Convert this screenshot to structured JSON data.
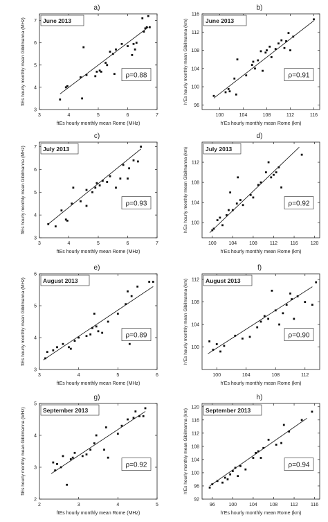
{
  "chart_data": [
    {
      "type": "scatter",
      "panel_letter": "a)",
      "title": "June 2013",
      "rho": "ρ=0.88",
      "xlabel": "ftEs hourly monthly mean Rome (MHz)",
      "ylabel": "ftEs hourly monthly mean Gibilmanna (MHz)",
      "xlim": [
        3,
        7
      ],
      "ylim": [
        3,
        7.3
      ],
      "xticks": [
        3,
        4,
        5,
        6,
        7
      ],
      "yticks": [
        3,
        4,
        5,
        6,
        7
      ],
      "points": [
        [
          3.7,
          3.45
        ],
        [
          3.9,
          4.0
        ],
        [
          3.95,
          4.05
        ],
        [
          4.4,
          4.45
        ],
        [
          4.45,
          3.5
        ],
        [
          4.5,
          5.8
        ],
        [
          4.6,
          4.55
        ],
        [
          4.9,
          4.5
        ],
        [
          4.95,
          4.7
        ],
        [
          5.05,
          4.75
        ],
        [
          5.1,
          4.7
        ],
        [
          5.25,
          5.1
        ],
        [
          5.3,
          5.0
        ],
        [
          5.4,
          5.6
        ],
        [
          5.5,
          5.5
        ],
        [
          5.55,
          4.6
        ],
        [
          5.6,
          5.7
        ],
        [
          5.8,
          5.95
        ],
        [
          5.9,
          4.75
        ],
        [
          6.0,
          5.85
        ],
        [
          6.15,
          5.45
        ],
        [
          6.2,
          5.95
        ],
        [
          6.25,
          5.7
        ],
        [
          6.3,
          6.0
        ],
        [
          6.5,
          7.1
        ],
        [
          6.55,
          6.5
        ],
        [
          6.6,
          6.65
        ],
        [
          6.65,
          6.7
        ],
        [
          6.7,
          7.2
        ],
        [
          6.75,
          6.7
        ]
      ],
      "fit": [
        [
          3.7,
          3.7
        ],
        [
          6.7,
          6.7
        ]
      ]
    },
    {
      "type": "scatter",
      "panel_letter": "b)",
      "title": "June 2013",
      "rho": "ρ=0.91",
      "xlabel": "h'Es hourly monthly mean Rome (km)",
      "ylabel": "h'Es hourly monthly mean Gibilmanna (km)",
      "xlim": [
        97,
        117
      ],
      "ylim": [
        95,
        116
      ],
      "xticks": [
        100,
        104,
        108,
        112,
        116
      ],
      "yticks": [
        96,
        100,
        104,
        108,
        112,
        116
      ],
      "points": [
        [
          99.0,
          98.0
        ],
        [
          101.0,
          98.8
        ],
        [
          101.5,
          99.5
        ],
        [
          101.7,
          99.0
        ],
        [
          102.5,
          101.8
        ],
        [
          102.8,
          98.3
        ],
        [
          103.0,
          106.0
        ],
        [
          104.5,
          102.5
        ],
        [
          105.5,
          104.8
        ],
        [
          105.7,
          105.5
        ],
        [
          106.0,
          104.0
        ],
        [
          106.5,
          105.8
        ],
        [
          107.0,
          107.8
        ],
        [
          107.3,
          103.5
        ],
        [
          107.8,
          107.5
        ],
        [
          108.0,
          108.0
        ],
        [
          108.5,
          108.8
        ],
        [
          108.8,
          106.5
        ],
        [
          109.5,
          108.3
        ],
        [
          110.0,
          109.5
        ],
        [
          110.5,
          110.2
        ],
        [
          111.0,
          108.5
        ],
        [
          111.3,
          110.0
        ],
        [
          111.7,
          111.8
        ],
        [
          112.0,
          108.0
        ],
        [
          112.5,
          111.0
        ],
        [
          116.0,
          114.8
        ]
      ],
      "fit": [
        [
          99,
          97.5
        ],
        [
          116,
          114.5
        ]
      ]
    },
    {
      "type": "scatter",
      "panel_letter": "c)",
      "title": "July 2013",
      "rho": "ρ=0.93",
      "xlabel": "ftEs hourly monthly mean Rome (MHz)",
      "ylabel": "ftEs hourly monthly mean Gibilmanna (MHz)",
      "xlim": [
        3,
        7
      ],
      "ylim": [
        3,
        7.2
      ],
      "xticks": [
        3,
        4,
        5,
        6,
        7
      ],
      "yticks": [
        3,
        4,
        5,
        6,
        7
      ],
      "points": [
        [
          3.3,
          3.6
        ],
        [
          3.55,
          3.5
        ],
        [
          3.75,
          4.2
        ],
        [
          3.9,
          3.8
        ],
        [
          3.95,
          3.75
        ],
        [
          4.1,
          4.5
        ],
        [
          4.15,
          5.2
        ],
        [
          4.4,
          4.6
        ],
        [
          4.6,
          4.4
        ],
        [
          4.6,
          5.1
        ],
        [
          4.8,
          5.0
        ],
        [
          4.9,
          5.2
        ],
        [
          4.95,
          5.4
        ],
        [
          5.05,
          5.3
        ],
        [
          5.15,
          5.5
        ],
        [
          5.3,
          5.45
        ],
        [
          5.4,
          5.7
        ],
        [
          5.6,
          5.2
        ],
        [
          5.75,
          5.6
        ],
        [
          5.85,
          6.2
        ],
        [
          6.0,
          5.6
        ],
        [
          6.05,
          6.05
        ],
        [
          6.2,
          6.4
        ],
        [
          6.35,
          6.35
        ],
        [
          6.45,
          7.0
        ]
      ],
      "fit": [
        [
          3.3,
          3.6
        ],
        [
          6.45,
          6.9
        ]
      ]
    },
    {
      "type": "scatter",
      "panel_letter": "d)",
      "title": "July 2013",
      "rho": "ρ=0.92",
      "xlabel": "h'Es hourly monthly mean Rome (km)",
      "ylabel": "h'Es hourly monthly mean Gibilmanna (km)",
      "xlim": [
        98,
        121
      ],
      "ylim": [
        97,
        116
      ],
      "xticks": [
        100,
        104,
        108,
        112,
        116,
        120
      ],
      "yticks": [
        100,
        104,
        108,
        112
      ],
      "points": [
        [
          100.0,
          98.5
        ],
        [
          100.3,
          98.8
        ],
        [
          101.0,
          100.5
        ],
        [
          101.5,
          101.0
        ],
        [
          102.0,
          99.5
        ],
        [
          102.8,
          101.5
        ],
        [
          103.2,
          102.5
        ],
        [
          103.5,
          106.0
        ],
        [
          104.0,
          102.5
        ],
        [
          104.8,
          103.8
        ],
        [
          105.0,
          109.0
        ],
        [
          105.5,
          104.5
        ],
        [
          106.0,
          103.5
        ],
        [
          107.5,
          105.5
        ],
        [
          108.0,
          105.0
        ],
        [
          109.0,
          107.5
        ],
        [
          109.5,
          108.0
        ],
        [
          110.5,
          110.0
        ],
        [
          111.0,
          112.0
        ],
        [
          111.5,
          109.0
        ],
        [
          112.0,
          109.5
        ],
        [
          112.5,
          110.0
        ],
        [
          113.0,
          111.0
        ],
        [
          113.5,
          107.0
        ],
        [
          117.5,
          113.5
        ]
      ],
      "fit": [
        [
          99.5,
          98.0
        ],
        [
          117.0,
          115.0
        ]
      ]
    },
    {
      "type": "scatter",
      "panel_letter": "e)",
      "title": "August 2013",
      "rho": "ρ=0.89",
      "xlabel": "ftEs hourly monthly mean Rome (MHz)",
      "ylabel": "ftEs hourly monthly mean Gibilmanna (MHz)",
      "xlim": [
        3,
        6
      ],
      "ylim": [
        3,
        6
      ],
      "xticks": [
        3,
        4,
        5,
        6
      ],
      "yticks": [
        3,
        4,
        5,
        6
      ],
      "points": [
        [
          3.15,
          3.35
        ],
        [
          3.2,
          3.55
        ],
        [
          3.35,
          3.6
        ],
        [
          3.45,
          3.7
        ],
        [
          3.6,
          3.8
        ],
        [
          3.75,
          3.7
        ],
        [
          3.8,
          3.65
        ],
        [
          3.9,
          3.9
        ],
        [
          4.0,
          4.0
        ],
        [
          4.2,
          4.05
        ],
        [
          4.3,
          4.1
        ],
        [
          4.35,
          4.3
        ],
        [
          4.4,
          4.75
        ],
        [
          4.45,
          4.35
        ],
        [
          4.5,
          4.2
        ],
        [
          4.6,
          4.15
        ],
        [
          4.75,
          4.5
        ],
        [
          5.0,
          4.75
        ],
        [
          5.2,
          5.05
        ],
        [
          5.25,
          5.45
        ],
        [
          5.3,
          3.8
        ],
        [
          5.35,
          5.3
        ],
        [
          5.5,
          5.6
        ],
        [
          5.8,
          5.75
        ],
        [
          5.9,
          5.75
        ]
      ],
      "fit": [
        [
          3.1,
          3.3
        ],
        [
          5.9,
          5.6
        ]
      ]
    },
    {
      "type": "scatter",
      "panel_letter": "f)",
      "title": "August 2013",
      "rho": "ρ=0.90",
      "xlabel": "h'Es hourly monthly mean Rome (km)",
      "ylabel": "h'Es hourly monthly mean Gibilmanna (km)",
      "xlim": [
        98,
        114
      ],
      "ylim": [
        96,
        113
      ],
      "xticks": [
        100,
        104,
        108,
        112
      ],
      "yticks": [
        100,
        104,
        108,
        112
      ],
      "points": [
        [
          99.0,
          101.0
        ],
        [
          99.5,
          99.5
        ],
        [
          100.0,
          100.5
        ],
        [
          100.5,
          99.2
        ],
        [
          101.0,
          100.2
        ],
        [
          102.5,
          102.0
        ],
        [
          103.5,
          101.5
        ],
        [
          104.5,
          101.8
        ],
        [
          105.5,
          103.5
        ],
        [
          106.0,
          104.5
        ],
        [
          106.5,
          105.5
        ],
        [
          107.0,
          105.0
        ],
        [
          107.5,
          110.0
        ],
        [
          108.0,
          106.5
        ],
        [
          108.5,
          104.0
        ],
        [
          109.0,
          106.0
        ],
        [
          109.5,
          107.5
        ],
        [
          110.0,
          109.5
        ],
        [
          110.2,
          108.5
        ],
        [
          110.5,
          105.0
        ],
        [
          111.0,
          109.0
        ],
        [
          112.0,
          108.0
        ],
        [
          113.0,
          107.5
        ],
        [
          113.5,
          111.5
        ]
      ],
      "fit": [
        [
          98.8,
          98.8
        ],
        [
          113.0,
          110.7
        ]
      ]
    },
    {
      "type": "scatter",
      "panel_letter": "g)",
      "title": "September 2013",
      "rho": "ρ=0.92",
      "xlabel": "ftEs hourly monthly mean Rome (MHz)",
      "ylabel": "ftEs hourly monthly mean Gibilmanna (MHz)",
      "xlim": [
        2,
        5
      ],
      "ylim": [
        2,
        5
      ],
      "xticks": [
        2,
        3,
        4,
        5
      ],
      "yticks": [
        2,
        3,
        4,
        5
      ],
      "points": [
        [
          2.35,
          3.15
        ],
        [
          2.4,
          2.9
        ],
        [
          2.45,
          3.1
        ],
        [
          2.55,
          3.0
        ],
        [
          2.6,
          3.35
        ],
        [
          2.8,
          3.25
        ],
        [
          2.85,
          3.3
        ],
        [
          2.9,
          3.45
        ],
        [
          3.1,
          3.35
        ],
        [
          3.2,
          3.4
        ],
        [
          3.3,
          3.55
        ],
        [
          3.4,
          3.75
        ],
        [
          3.45,
          4.0
        ],
        [
          3.65,
          3.55
        ],
        [
          3.7,
          4.25
        ],
        [
          3.75,
          3.3
        ],
        [
          4.0,
          4.05
        ],
        [
          4.1,
          4.3
        ],
        [
          4.25,
          4.5
        ],
        [
          4.4,
          4.55
        ],
        [
          4.45,
          4.75
        ],
        [
          4.55,
          4.6
        ],
        [
          4.65,
          4.6
        ],
        [
          4.7,
          4.85
        ],
        [
          2.7,
          2.45
        ]
      ],
      "fit": [
        [
          2.3,
          2.8
        ],
        [
          4.7,
          4.75
        ]
      ]
    },
    {
      "type": "scatter",
      "panel_letter": "h)",
      "title": "September 2013",
      "rho": "ρ=0.94",
      "xlabel": "h'Es hourly monthly mean Rome (km)",
      "ylabel": "h'Es hourly monthly mean Gibilmanna (km)",
      "xlim": [
        94,
        117
      ],
      "ylim": [
        92,
        121
      ],
      "xticks": [
        96,
        100,
        104,
        108,
        112,
        116
      ],
      "yticks": [
        92,
        96,
        100,
        104,
        108,
        112,
        116,
        120
      ],
      "points": [
        [
          95.5,
          95.5
        ],
        [
          96.0,
          96.5
        ],
        [
          97.0,
          97.5
        ],
        [
          98.0,
          97.0
        ],
        [
          98.5,
          98.5
        ],
        [
          99.0,
          98.0
        ],
        [
          99.5,
          99.5
        ],
        [
          100.0,
          100.5
        ],
        [
          100.5,
          101.5
        ],
        [
          101.0,
          99.0
        ],
        [
          101.5,
          102.0
        ],
        [
          102.5,
          101.0
        ],
        [
          104.0,
          104.5
        ],
        [
          104.5,
          106.0
        ],
        [
          105.0,
          106.5
        ],
        [
          105.5,
          104.5
        ],
        [
          106.0,
          107.5
        ],
        [
          107.0,
          110.0
        ],
        [
          108.5,
          108.5
        ],
        [
          109.5,
          109.0
        ],
        [
          110.0,
          114.5
        ],
        [
          111.0,
          112.5
        ],
        [
          113.5,
          116.0
        ],
        [
          115.5,
          118.5
        ]
      ],
      "fit": [
        [
          95.5,
          96.0
        ],
        [
          114.5,
          116.5
        ]
      ]
    }
  ]
}
